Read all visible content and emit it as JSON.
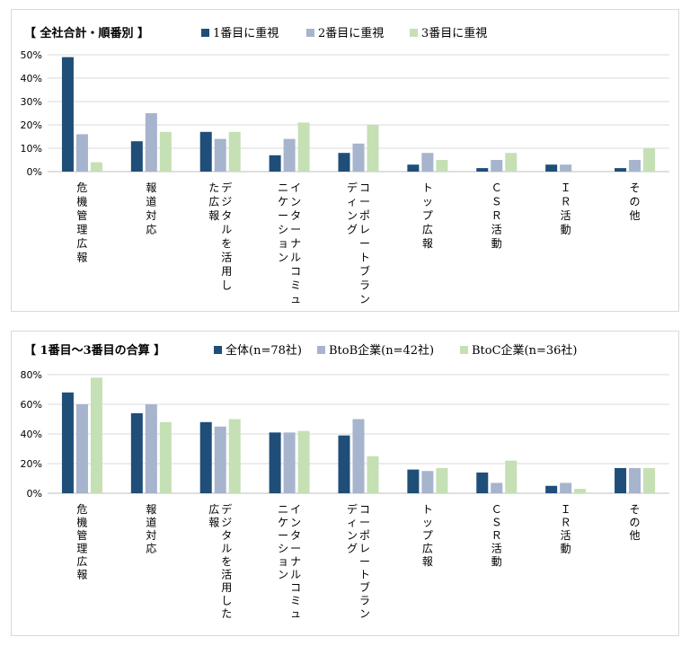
{
  "colors": {
    "series1": "#1f4e79",
    "series2": "#a6b4cd",
    "series3": "#c5e0b4",
    "grid": "#d9d9d9",
    "axis": "#bfbfbf"
  },
  "chart_data": [
    {
      "type": "bar",
      "title": "【 全社合計・順番別 】",
      "categories": [
        "危機管理広報",
        "報道対応",
        "デジタルを活用した広報",
        "インターナルコミュニケーション",
        "コーポレートブランディング",
        "トップ広報",
        "ＣＳＲ活動",
        "ＩＲ活動",
        "その他"
      ],
      "category_lines": [
        [
          "危機管理広報"
        ],
        [
          "報道対応"
        ],
        [
          "デジタルを活用し",
          "た広報"
        ],
        [
          "インターナルコミュ",
          "ニケーション"
        ],
        [
          "コーポレートブラン",
          "ディング"
        ],
        [
          "トップ広報"
        ],
        [
          "ＣＳＲ活動"
        ],
        [
          "ＩＲ活動"
        ],
        [
          "その他"
        ]
      ],
      "series": [
        {
          "name": "1番目に重視",
          "values": [
            49,
            13,
            17,
            7,
            8,
            3,
            1.5,
            3,
            1.5
          ]
        },
        {
          "name": "2番目に重視",
          "values": [
            16,
            25,
            14,
            14,
            12,
            8,
            5,
            3,
            5
          ]
        },
        {
          "name": "3番目に重視",
          "values": [
            4,
            17,
            17,
            21,
            20,
            5,
            8,
            0,
            10
          ]
        }
      ],
      "yticks": [
        "0%",
        "10%",
        "20%",
        "30%",
        "40%",
        "50%"
      ],
      "ylim": [
        0,
        50
      ],
      "legend_position": "top",
      "grid": true
    },
    {
      "type": "bar",
      "title": "【 1番目～3番目の合算 】",
      "categories": [
        "危機管理広報",
        "報道対応",
        "デジタルを活用した広報",
        "インターナルコミュニケーション",
        "コーポレートブランディング",
        "トップ広報",
        "ＣＳＲ活動",
        "ＩＲ活動",
        "その他"
      ],
      "category_lines": [
        [
          "危機管理広報"
        ],
        [
          "報道対応"
        ],
        [
          "デジタルを活用した",
          "広報"
        ],
        [
          "インターナルコミュ",
          "ニケーション"
        ],
        [
          "コーポレートブラン",
          "ディング"
        ],
        [
          "トップ広報"
        ],
        [
          "ＣＳＲ活動"
        ],
        [
          "ＩＲ活動"
        ],
        [
          "その他"
        ]
      ],
      "series": [
        {
          "name": "全体(n=78社)",
          "values": [
            68,
            54,
            48,
            41,
            39,
            16,
            14,
            5,
            17
          ]
        },
        {
          "name": "BtoB企業(n=42社)",
          "values": [
            60,
            60,
            45,
            41,
            50,
            15,
            7,
            7,
            17
          ]
        },
        {
          "name": "BtoC企業(n=36社)",
          "values": [
            78,
            48,
            50,
            42,
            25,
            17,
            22,
            3,
            17
          ]
        }
      ],
      "yticks": [
        "0%",
        "20%",
        "40%",
        "60%",
        "80%"
      ],
      "ylim": [
        0,
        80
      ],
      "legend_position": "top",
      "grid": true
    }
  ]
}
